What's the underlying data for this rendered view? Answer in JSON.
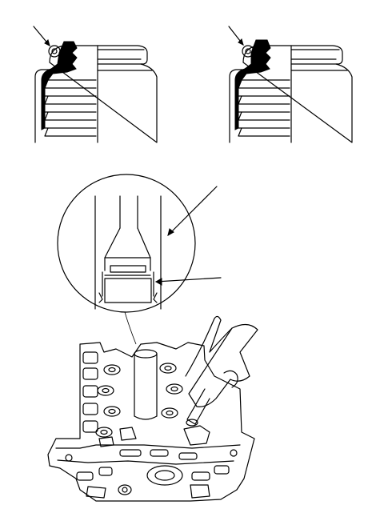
{
  "figure": {
    "panels": [
      "valve-seal-seated-left",
      "valve-seal-seated-right",
      "valve-seal-installer-detail",
      "cylinder-head-with-installer"
    ],
    "colors": {
      "ink": "#000000",
      "paper": "#ffffff"
    }
  }
}
